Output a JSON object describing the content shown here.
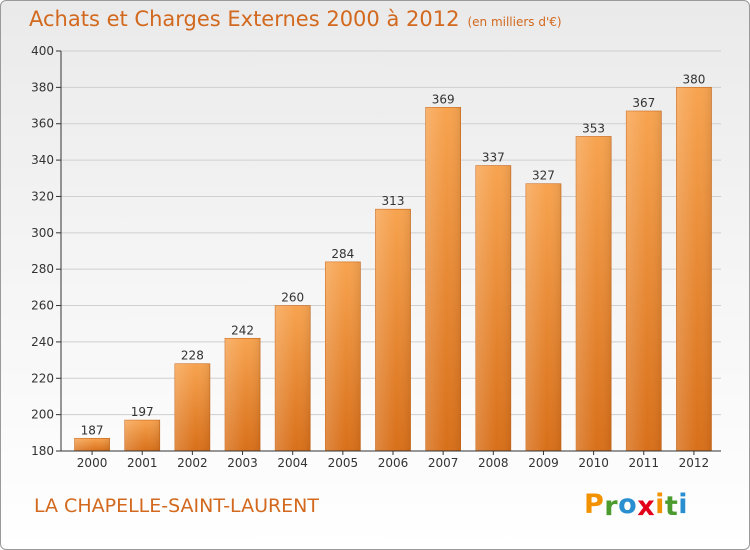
{
  "header": {
    "title": "Achats et Charges Externes 2000 à 2012",
    "subtitle": "(en milliers d'€)"
  },
  "footer": {
    "place": "LA CHAPELLE-SAINT-LAURENT",
    "logo_letters": [
      "P",
      "r",
      "o",
      "x",
      "i",
      "t",
      "i"
    ],
    "logo_colors": [
      "#f39200",
      "#4b9b2e",
      "#2a8fd0",
      "#e2001a",
      "#f39200",
      "#4b9b2e",
      "#2a8fd0"
    ]
  },
  "colors": {
    "bar_top": "#f7a34f",
    "bar_bottom": "#d86f19",
    "axis": "#333333",
    "grid": "#cfcfcf",
    "title": "#d2691e"
  },
  "chart_data": {
    "type": "bar",
    "categories": [
      "2000",
      "2001",
      "2002",
      "2003",
      "2004",
      "2005",
      "2006",
      "2007",
      "2008",
      "2009",
      "2010",
      "2011",
      "2012"
    ],
    "values": [
      187,
      197,
      228,
      242,
      260,
      284,
      313,
      369,
      337,
      327,
      353,
      367,
      380
    ],
    "ylim": [
      180,
      400
    ],
    "yticks": [
      180,
      200,
      220,
      240,
      260,
      280,
      300,
      320,
      340,
      360,
      380,
      400
    ],
    "grid": true,
    "data_labels": true
  }
}
